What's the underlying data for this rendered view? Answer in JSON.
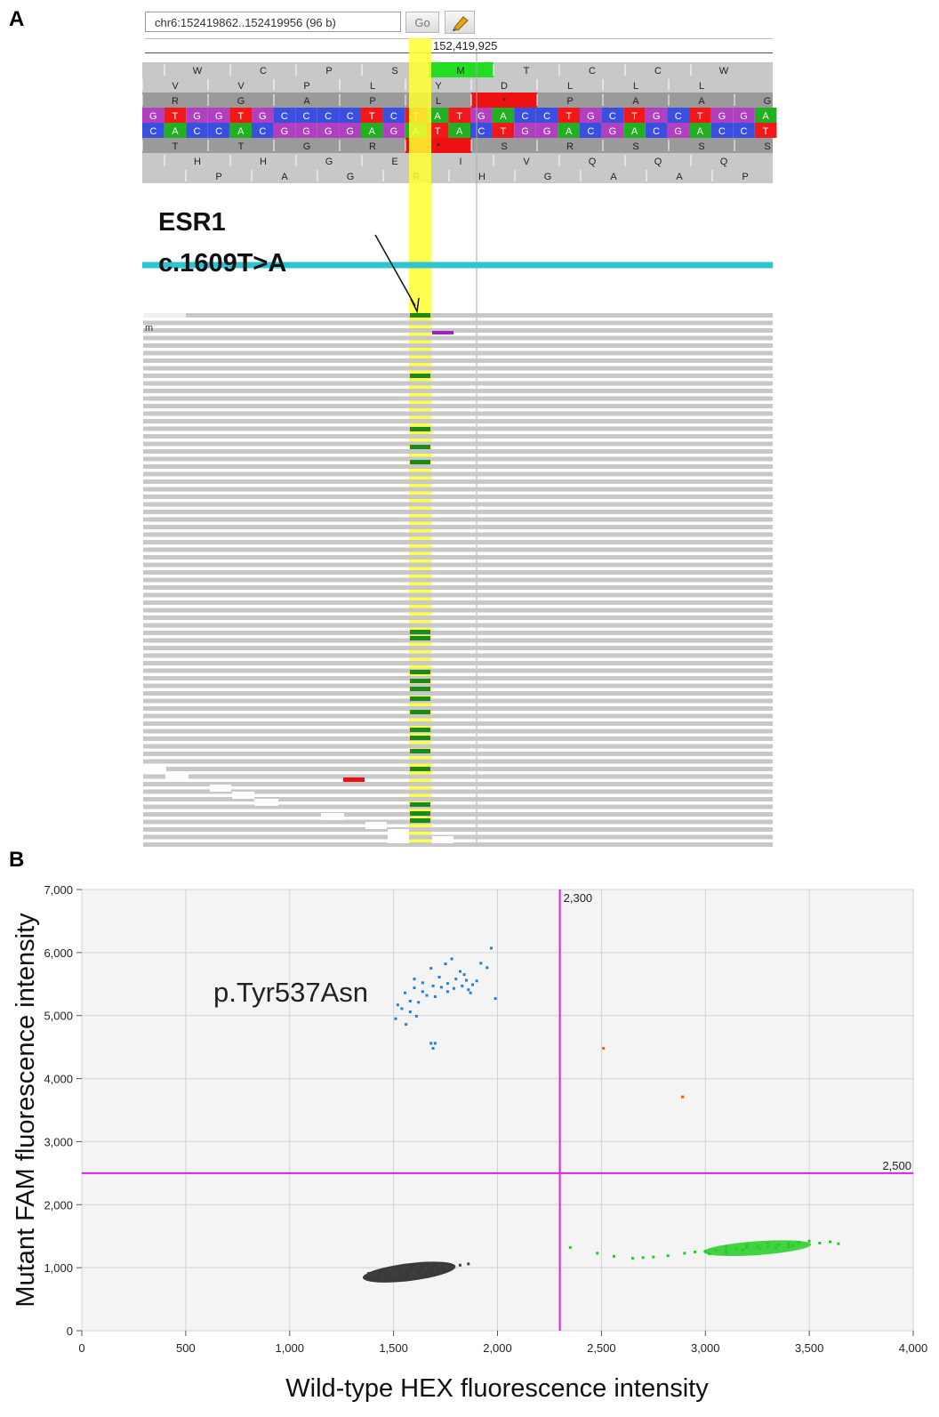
{
  "panels": {
    "a": "A",
    "b": "B"
  },
  "browser": {
    "location": "chr6:152419862..152419956 (96 b)",
    "go_label": "Go",
    "highlight_icon": "highlighter-icon",
    "ruler_position": "152,419,925",
    "translation_rows": [
      [
        "W",
        "C",
        "P",
        "S",
        "M",
        "T",
        "C",
        "C",
        "W"
      ],
      [
        "V",
        "V",
        "P",
        "L",
        "Y",
        "D",
        "L",
        "L",
        "L"
      ],
      [
        "R",
        "G",
        "A",
        "P",
        "L",
        "*",
        "P",
        "A",
        "A",
        "G"
      ],
      [
        "T",
        "T",
        "G",
        "R",
        "*",
        "S",
        "R",
        "S",
        "S",
        "S"
      ],
      [
        "H",
        "H",
        "G",
        "E",
        "I",
        "V",
        "Q",
        "Q",
        "Q"
      ],
      [
        "P",
        "A",
        "G",
        "R",
        "H",
        "G",
        "A",
        "A",
        "P"
      ]
    ],
    "forward_strand": [
      "G",
      "T",
      "G",
      "G",
      "T",
      "G",
      "C",
      "C",
      "C",
      "C",
      "T",
      "C",
      "T",
      "A",
      "T",
      "G",
      "A",
      "C",
      "C",
      "T",
      "G",
      "C",
      "T",
      "G",
      "C",
      "T",
      "G",
      "G",
      "A"
    ],
    "reverse_strand": [
      "C",
      "A",
      "C",
      "C",
      "A",
      "C",
      "G",
      "G",
      "G",
      "G",
      "A",
      "G",
      "A",
      "T",
      "A",
      "C",
      "T",
      "G",
      "G",
      "A",
      "C",
      "G",
      "A",
      "C",
      "G",
      "A",
      "C",
      "C",
      "T"
    ],
    "read_name_fragment": "m",
    "gene": "ESR1",
    "variant": "c.1609T>A",
    "colors": {
      "A": "#20b020",
      "C": "#3a4fe0",
      "G": "#b040c0",
      "T": "#f01818",
      "highlight": "#ffff33",
      "track": "#2ec5d0",
      "mismatch": "#1a8a1a",
      "read": "#c8c8c8"
    }
  },
  "chart_data": {
    "type": "scatter",
    "xlabel": "Wild-type HEX fluorescence intensity",
    "ylabel": "Mutant FAM fluorescence intensity",
    "xlim": [
      0,
      4000
    ],
    "ylim": [
      0,
      7000
    ],
    "xticks": [
      "0",
      "500",
      "1,000",
      "1,500",
      "2,000",
      "2,500",
      "3,000",
      "3,500",
      "4,000"
    ],
    "yticks": [
      "0",
      "1,000",
      "2,000",
      "3,000",
      "4,000",
      "5,000",
      "6,000",
      "7,000"
    ],
    "grid": true,
    "thresholds": {
      "x": 2300,
      "x_label": "2,300",
      "y": 2500,
      "y_label": "2,500",
      "color": "#e020e0"
    },
    "annotation": "p.Tyr537Asn",
    "clusters": [
      {
        "points": [
          [
            1555,
            5360
          ],
          [
            1600,
            5440
          ],
          [
            1640,
            5520
          ],
          [
            1690,
            5470
          ],
          [
            1720,
            5610
          ],
          [
            1760,
            5510
          ],
          [
            1800,
            5580
          ],
          [
            1840,
            5650
          ],
          [
            1880,
            5490
          ],
          [
            1950,
            5760
          ],
          [
            1540,
            5110
          ],
          [
            1580,
            5060
          ],
          [
            1620,
            5210
          ],
          [
            1700,
            5300
          ],
          [
            1760,
            5380
          ],
          [
            1820,
            5700
          ],
          [
            1900,
            5550
          ],
          [
            1970,
            6070
          ],
          [
            1990,
            5270
          ],
          [
            1510,
            4950
          ],
          [
            1560,
            4860
          ],
          [
            1610,
            4990
          ],
          [
            1680,
            4560
          ],
          [
            1700,
            4560
          ],
          [
            1690,
            4480
          ],
          [
            1750,
            5820
          ],
          [
            1660,
            5320
          ],
          [
            1730,
            5450
          ],
          [
            1790,
            5430
          ],
          [
            1850,
            5560
          ],
          [
            1920,
            5830
          ],
          [
            1860,
            5410
          ],
          [
            1640,
            5380
          ],
          [
            1580,
            5230
          ],
          [
            1520,
            5170
          ],
          [
            1600,
            5580
          ],
          [
            1680,
            5750
          ],
          [
            1780,
            5900
          ],
          [
            1830,
            5470
          ],
          [
            1870,
            5360
          ]
        ],
        "color": "#2080d8"
      },
      {
        "points": [
          [
            1400,
            880
          ],
          [
            1450,
            900
          ],
          [
            1500,
            920
          ],
          [
            1550,
            930
          ],
          [
            1600,
            950
          ],
          [
            1650,
            960
          ],
          [
            1700,
            990
          ],
          [
            1750,
            1020
          ],
          [
            1450,
            850
          ],
          [
            1520,
            870
          ],
          [
            1580,
            890
          ],
          [
            1640,
            920
          ],
          [
            1700,
            940
          ],
          [
            1760,
            980
          ],
          [
            1820,
            1040
          ],
          [
            1380,
            910
          ],
          [
            1480,
            960
          ],
          [
            1560,
            1000
          ],
          [
            1620,
            1030
          ],
          [
            1680,
            1060
          ],
          [
            1500,
            880
          ],
          [
            1600,
            900
          ],
          [
            1540,
            960
          ],
          [
            1660,
            990
          ],
          [
            1720,
            1030
          ],
          [
            1860,
            1060
          ]
        ],
        "color": "#404040"
      },
      {
        "points": [
          [
            2350,
            1320
          ],
          [
            2480,
            1230
          ],
          [
            2560,
            1180
          ],
          [
            2650,
            1150
          ],
          [
            2700,
            1160
          ],
          [
            2750,
            1170
          ],
          [
            2820,
            1190
          ],
          [
            2900,
            1230
          ],
          [
            2950,
            1250
          ],
          [
            3000,
            1260
          ],
          [
            3050,
            1280
          ],
          [
            3100,
            1270
          ],
          [
            3150,
            1300
          ],
          [
            3200,
            1320
          ],
          [
            3250,
            1340
          ],
          [
            3300,
            1330
          ],
          [
            3350,
            1360
          ],
          [
            3400,
            1380
          ],
          [
            3450,
            1400
          ],
          [
            3500,
            1420
          ],
          [
            3550,
            1390
          ],
          [
            3600,
            1410
          ],
          [
            3640,
            1380
          ],
          [
            3020,
            1220
          ],
          [
            3100,
            1240
          ],
          [
            3180,
            1280
          ],
          [
            3260,
            1300
          ],
          [
            3340,
            1310
          ],
          [
            3420,
            1350
          ],
          [
            3100,
            1330
          ],
          [
            3200,
            1360
          ],
          [
            3300,
            1390
          ],
          [
            3400,
            1330
          ]
        ],
        "color": "#22cc22"
      },
      {
        "points": [
          [
            2510,
            4480
          ],
          [
            2890,
            3710
          ]
        ],
        "color": "#ff5500"
      }
    ]
  }
}
